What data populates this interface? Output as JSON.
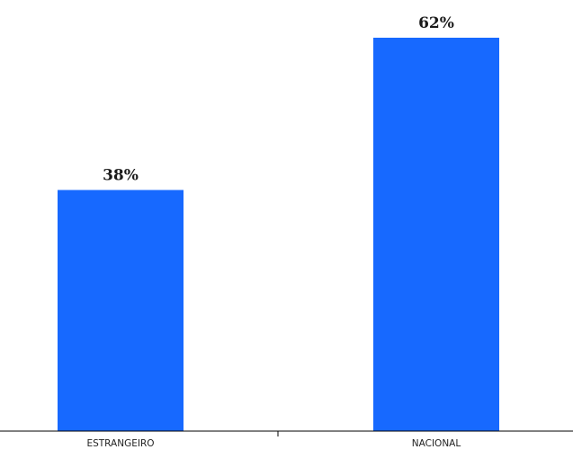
{
  "chart_data": {
    "type": "bar",
    "categories": [
      "ESTRANGEIRO",
      "NACIONAL"
    ],
    "values": [
      38,
      62
    ],
    "data_labels": [
      "38%",
      "62%"
    ],
    "ylim": [
      0,
      62
    ],
    "grid": false,
    "legend": "none",
    "colors": {
      "bar": "#1769ff",
      "axis": "#000000",
      "text": "#1a1a1a"
    }
  }
}
